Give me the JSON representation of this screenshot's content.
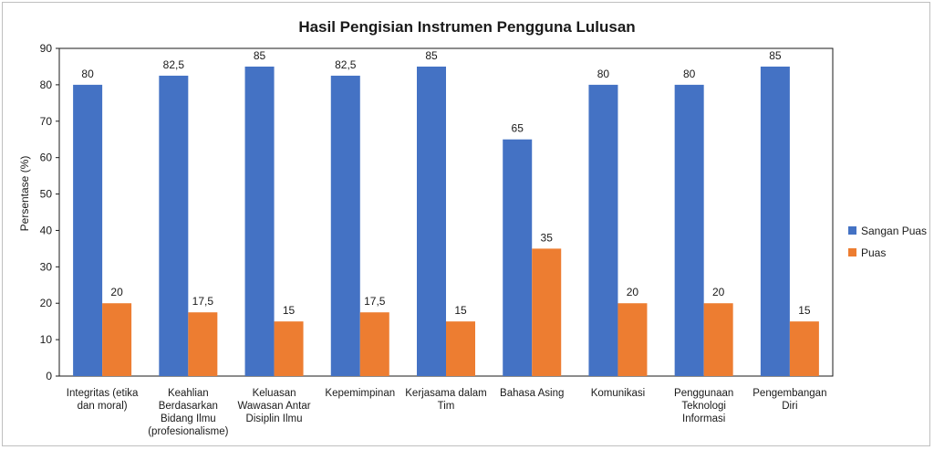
{
  "chart_data": {
    "type": "bar",
    "title": "Hasil Pengisian Instrumen Pengguna Lulusan",
    "xlabel": "",
    "ylabel": "Persentase (%)",
    "ylim": [
      0,
      90
    ],
    "yticks": [
      0,
      10,
      20,
      30,
      40,
      50,
      60,
      70,
      80,
      90
    ],
    "grid": false,
    "legend_position": "right",
    "categories": [
      [
        "Integritas (etika",
        "dan moral)"
      ],
      [
        "Keahlian",
        "Berdasarkan",
        "Bidang Ilmu",
        "(profesionalisme)"
      ],
      [
        "Keluasan",
        "Wawasan Antar",
        "Disiplin Ilmu"
      ],
      [
        "Kepemimpinan"
      ],
      [
        "Kerjasama dalam",
        "Tim"
      ],
      [
        "Bahasa Asing"
      ],
      [
        "Komunikasi"
      ],
      [
        "Penggunaan",
        "Teknologi",
        "Informasi"
      ],
      [
        "Pengembangan",
        "Diri"
      ]
    ],
    "series": [
      {
        "name": "Sangan Puas",
        "color": "#4472C4",
        "values": [
          80,
          82.5,
          85,
          82.5,
          85,
          65,
          80,
          80,
          85
        ],
        "labels": [
          "80",
          "82,5",
          "85",
          "82,5",
          "85",
          "65",
          "80",
          "80",
          "85"
        ]
      },
      {
        "name": "Puas",
        "color": "#ED7D31",
        "values": [
          20,
          17.5,
          15,
          17.5,
          15,
          35,
          20,
          20,
          15
        ],
        "labels": [
          "20",
          "17,5",
          "15",
          "17,5",
          "15",
          "35",
          "20",
          "20",
          "15"
        ]
      }
    ]
  }
}
